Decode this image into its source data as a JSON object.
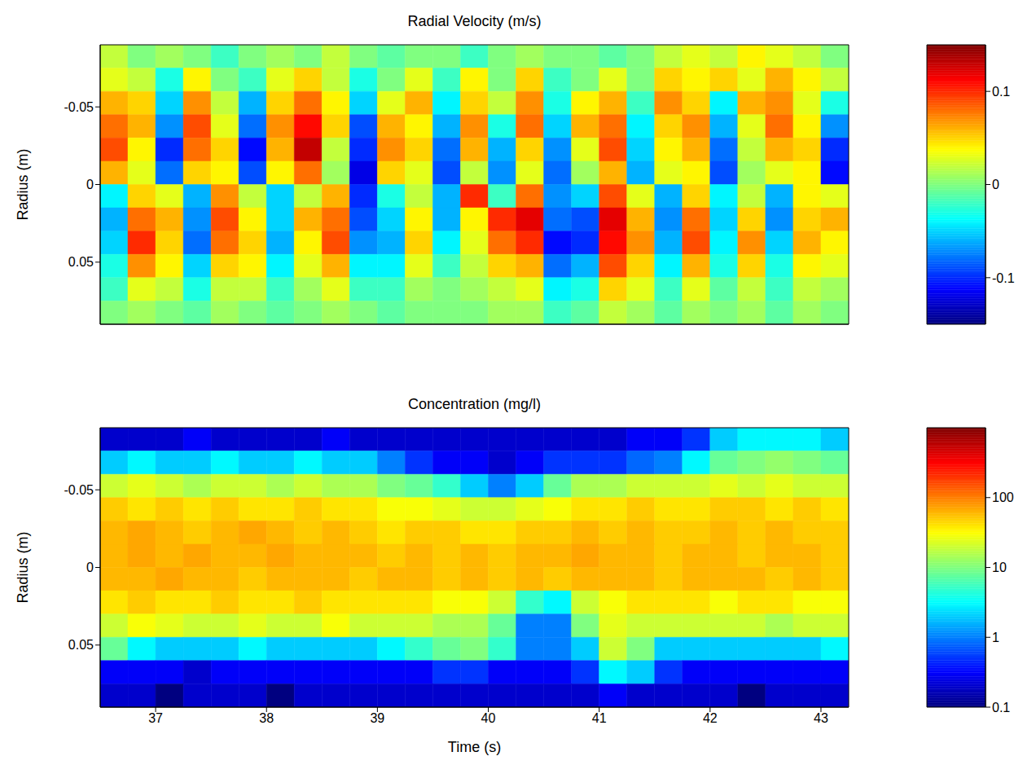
{
  "chart_data": [
    {
      "type": "heatmap",
      "title": "Radial Velocity (m/s)",
      "y_label": "Radius (m)",
      "x_bins": [
        36.5,
        36.75,
        37,
        37.25,
        37.5,
        37.75,
        38,
        38.25,
        38.5,
        38.75,
        39,
        39.25,
        39.5,
        39.75,
        40,
        40.25,
        40.5,
        40.75,
        41,
        41.25,
        41.5,
        41.75,
        42,
        42.25,
        42.5,
        42.75,
        43,
        43.25
      ],
      "y_bins": [
        -0.09,
        -0.075,
        -0.06,
        -0.045,
        -0.03,
        -0.015,
        0,
        0.015,
        0.03,
        0.045,
        0.06,
        0.075,
        0.09
      ],
      "cells": [
        [
          0.02,
          0,
          0.01,
          0,
          -0.02,
          0,
          0.01,
          0,
          0.02,
          0,
          -0.01,
          0,
          0,
          -0.02,
          0,
          0.01,
          0,
          0,
          -0.01,
          0,
          0.02,
          0.03,
          0.02,
          0.04,
          0.03,
          0.02,
          0
        ],
        [
          0.03,
          0.02,
          -0.03,
          0.04,
          0,
          -0.02,
          0.03,
          0.05,
          0.02,
          -0.03,
          0,
          0.03,
          -0.02,
          0.04,
          0,
          0.05,
          -0.02,
          0,
          0.03,
          0,
          0.05,
          0.04,
          0.05,
          0.03,
          0.06,
          0.04,
          0.02
        ],
        [
          0.06,
          0.05,
          -0.05,
          0.07,
          0.02,
          -0.06,
          0.05,
          0.08,
          0.04,
          -0.05,
          0.03,
          0.06,
          -0.04,
          0.05,
          0.02,
          0.07,
          -0.03,
          0.04,
          0.06,
          -0.02,
          0.07,
          0.05,
          -0.04,
          0.06,
          0.07,
          0.03,
          -0.03
        ],
        [
          0.08,
          0.06,
          -0.07,
          0.09,
          0.03,
          -0.08,
          0.07,
          0.11,
          0.05,
          -0.09,
          0.06,
          0.04,
          -0.06,
          0.07,
          -0.03,
          0.08,
          -0.05,
          0.06,
          0.08,
          -0.04,
          0.05,
          0.07,
          -0.06,
          0.03,
          0.08,
          0.04,
          -0.07
        ],
        [
          0.09,
          0.04,
          -0.1,
          0.08,
          0.05,
          -0.11,
          0.06,
          0.13,
          0.02,
          -0.1,
          0.07,
          0.05,
          -0.08,
          0.06,
          -0.06,
          0.05,
          -0.07,
          0.03,
          0.09,
          -0.05,
          0.04,
          0.06,
          -0.08,
          0.02,
          0.06,
          0.05,
          -0.1
        ],
        [
          0.06,
          0.03,
          -0.08,
          0.05,
          0.04,
          -0.09,
          0.04,
          0.08,
          0.01,
          -0.12,
          0.05,
          0.03,
          -0.09,
          0.02,
          -0.07,
          0.03,
          -0.08,
          0.01,
          0.06,
          -0.06,
          0.03,
          0.04,
          -0.09,
          0.01,
          0.03,
          0.04,
          -0.11
        ],
        [
          -0.04,
          0.05,
          0.03,
          -0.06,
          0.07,
          0.02,
          -0.05,
          0.02,
          0.06,
          -0.1,
          -0.03,
          0.02,
          -0.06,
          0.1,
          -0.02,
          0.08,
          -0.07,
          -0.05,
          0.09,
          0.03,
          -0.06,
          0.05,
          -0.04,
          0.02,
          -0.06,
          0.04,
          0.03
        ],
        [
          -0.06,
          0.08,
          0.06,
          -0.07,
          0.09,
          0.04,
          -0.05,
          0.06,
          0.08,
          -0.09,
          -0.05,
          0.04,
          -0.06,
          0.04,
          0.1,
          0.12,
          -0.08,
          -0.09,
          0.12,
          0.06,
          -0.07,
          0.08,
          -0.05,
          0.05,
          -0.07,
          0.05,
          0.06
        ],
        [
          -0.05,
          0.1,
          0.05,
          -0.08,
          0.08,
          0.05,
          -0.06,
          0.04,
          0.09,
          -0.07,
          -0.06,
          0.05,
          -0.04,
          0.03,
          0.08,
          0.1,
          -0.11,
          -0.1,
          0.11,
          0.07,
          -0.06,
          0.09,
          -0.04,
          0.07,
          -0.05,
          0.06,
          0.04
        ],
        [
          -0.03,
          0.07,
          0.04,
          -0.05,
          0.05,
          0.04,
          -0.04,
          0.03,
          0.06,
          -0.04,
          -0.04,
          0.03,
          -0.02,
          0.02,
          0.05,
          0.06,
          -0.08,
          -0.06,
          0.09,
          0.05,
          -0.04,
          0.06,
          -0.03,
          0.05,
          -0.03,
          0.04,
          0.03
        ],
        [
          -0.02,
          0.03,
          0.02,
          -0.03,
          0.02,
          0.02,
          -0.02,
          0.01,
          0.03,
          -0.02,
          -0.02,
          0.01,
          0,
          0.01,
          0.02,
          0.03,
          -0.04,
          -0.03,
          0.05,
          0.03,
          -0.02,
          0.03,
          -0.01,
          0.02,
          -0.02,
          0.02,
          0.01
        ],
        [
          0,
          0.01,
          0,
          -0.01,
          0.01,
          0,
          -0.01,
          0,
          0.01,
          0,
          -0.01,
          0,
          0,
          0,
          0.01,
          0.01,
          -0.02,
          -0.01,
          0.02,
          0.01,
          -0.01,
          0.01,
          0,
          0.01,
          -0.01,
          0.01,
          0
        ]
      ],
      "xlim": [
        36.5,
        43.25
      ],
      "xticks": [
        37,
        38,
        39,
        40,
        41,
        42,
        43
      ],
      "ylim": [
        -0.09,
        0.09
      ],
      "yticks": [
        -0.05,
        0,
        0.05
      ],
      "tick_labels": "y",
      "colorbar": {
        "range": [
          -0.15,
          0.15
        ],
        "ticks": [
          -0.1,
          0,
          0.1
        ]
      }
    },
    {
      "type": "heatmap",
      "title": "Concentration (mg/l)",
      "x_label": "Time (s)",
      "y_label": "Radius (m)",
      "x_bins": [
        36.5,
        36.75,
        37,
        37.25,
        37.5,
        37.75,
        38,
        38.25,
        38.5,
        38.75,
        39,
        39.25,
        39.5,
        39.75,
        40,
        40.25,
        40.5,
        40.75,
        41,
        41.25,
        41.5,
        41.75,
        42,
        42.25,
        42.5,
        42.75,
        43,
        43.25
      ],
      "y_bins": [
        -0.09,
        -0.075,
        -0.06,
        -0.045,
        -0.03,
        -0.015,
        0,
        0.015,
        0.03,
        0.045,
        0.06,
        0.075,
        0.09
      ],
      "cells": [
        [
          0.2,
          0.2,
          0.2,
          0.3,
          0.2,
          0.2,
          0.2,
          0.2,
          0.3,
          0.2,
          0.2,
          0.2,
          0.2,
          0.2,
          0.2,
          0.2,
          0.2,
          0.2,
          0.2,
          0.3,
          0.3,
          0.5,
          2,
          3,
          3,
          3,
          2
        ],
        [
          2,
          3,
          2,
          2,
          3,
          2,
          2,
          3,
          2,
          2,
          1,
          0.5,
          0.3,
          0.3,
          0.2,
          0.3,
          0.5,
          0.5,
          0.5,
          0.8,
          1,
          3,
          8,
          10,
          12,
          10,
          8
        ],
        [
          20,
          25,
          20,
          15,
          20,
          20,
          15,
          20,
          15,
          15,
          10,
          8,
          5,
          2,
          1,
          2,
          8,
          15,
          15,
          20,
          20,
          20,
          25,
          20,
          25,
          20,
          20
        ],
        [
          50,
          40,
          50,
          40,
          50,
          40,
          40,
          50,
          40,
          40,
          30,
          30,
          25,
          20,
          20,
          25,
          30,
          40,
          40,
          50,
          40,
          40,
          50,
          50,
          40,
          50,
          40
        ],
        [
          60,
          70,
          60,
          50,
          60,
          70,
          60,
          50,
          60,
          50,
          40,
          50,
          50,
          40,
          40,
          50,
          50,
          60,
          50,
          60,
          50,
          50,
          60,
          50,
          60,
          50,
          50
        ],
        [
          60,
          70,
          60,
          70,
          60,
          60,
          70,
          60,
          60,
          60,
          50,
          60,
          50,
          60,
          50,
          60,
          60,
          70,
          60,
          60,
          50,
          60,
          60,
          50,
          60,
          60,
          50
        ],
        [
          60,
          60,
          70,
          60,
          60,
          50,
          60,
          60,
          60,
          50,
          60,
          60,
          50,
          60,
          50,
          60,
          50,
          60,
          60,
          60,
          50,
          60,
          60,
          60,
          50,
          60,
          50
        ],
        [
          40,
          50,
          40,
          40,
          50,
          40,
          40,
          50,
          40,
          40,
          40,
          40,
          30,
          30,
          20,
          5,
          3,
          20,
          30,
          40,
          40,
          40,
          30,
          40,
          40,
          30,
          30
        ],
        [
          20,
          30,
          25,
          20,
          20,
          25,
          20,
          20,
          30,
          20,
          20,
          20,
          15,
          15,
          8,
          1,
          1,
          10,
          25,
          20,
          20,
          20,
          20,
          20,
          15,
          20,
          20
        ],
        [
          8,
          3,
          2,
          2,
          2,
          3,
          2,
          2,
          2,
          2,
          3,
          5,
          8,
          10,
          5,
          1,
          1,
          2,
          20,
          10,
          2,
          2,
          2,
          2,
          2,
          2,
          3
        ],
        [
          0.3,
          0.3,
          0.3,
          0.2,
          0.3,
          0.3,
          0.3,
          0.3,
          0.3,
          0.3,
          0.3,
          0.3,
          0.5,
          0.5,
          0.3,
          0.3,
          0.3,
          0.5,
          3,
          2,
          0.5,
          0.3,
          0.3,
          0.3,
          0.3,
          0.3,
          0.3
        ],
        [
          0.2,
          0.2,
          0.1,
          0.2,
          0.2,
          0.2,
          0.1,
          0.2,
          0.2,
          0.2,
          0.2,
          0.2,
          0.2,
          0.2,
          0.2,
          0.2,
          0.2,
          0.2,
          0.3,
          0.2,
          0.2,
          0.2,
          0.2,
          0.1,
          0.2,
          0.2,
          0.2
        ]
      ],
      "xlim": [
        36.5,
        43.25
      ],
      "xticks": [
        37,
        38,
        39,
        40,
        41,
        42,
        43
      ],
      "ylim": [
        -0.09,
        0.09
      ],
      "yticks": [
        -0.05,
        0,
        0.05
      ],
      "colorbar": {
        "range": [
          0.1,
          1000
        ],
        "ticks": [
          0.1,
          1,
          10,
          100
        ],
        "log": true
      }
    }
  ]
}
